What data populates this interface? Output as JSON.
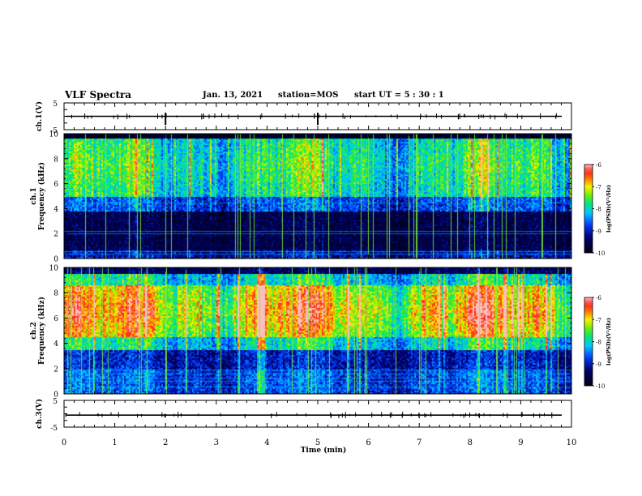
{
  "header": {
    "title": "VLF Spectra",
    "date": "Jan. 13, 2021",
    "station": "station=MOS",
    "start": "start  UT =   5 : 30 : 1"
  },
  "chart_data": [
    {
      "type": "line",
      "panel": "ch1-waveform",
      "ylabel": "ch.1(V)",
      "yticks": [
        "5",
        "-5"
      ],
      "ylim": [
        -5,
        5
      ],
      "x": [
        0,
        10
      ],
      "values": [
        0,
        0
      ]
    },
    {
      "type": "heatmap",
      "panel": "ch1-spectrogram",
      "ylabel": "Frequency (kHz)",
      "channel_label": "ch.1",
      "yticks": [
        "0",
        "2",
        "4",
        "6",
        "8",
        "10"
      ],
      "ylim": [
        0,
        10
      ],
      "xlim": [
        0,
        10
      ],
      "colorbar": {
        "label": "log(PSD)(V²/Hz)",
        "ticks": [
          "-6",
          "-7",
          "-8",
          "-9",
          "-10"
        ],
        "range": [
          -10,
          -6
        ]
      }
    },
    {
      "type": "heatmap",
      "panel": "ch2-spectrogram",
      "ylabel": "Frequency (kHz)",
      "channel_label": "ch.2",
      "yticks": [
        "0",
        "2",
        "4",
        "6",
        "8",
        "10"
      ],
      "ylim": [
        0,
        10
      ],
      "xlim": [
        0,
        10
      ],
      "colorbar": {
        "label": "log(PSD)(V²/Hz)",
        "ticks": [
          "-6",
          "-7",
          "-8",
          "-9",
          "-10"
        ],
        "range": [
          -10,
          -6
        ]
      }
    },
    {
      "type": "line",
      "panel": "ch3-waveform",
      "ylabel": "ch.3(V)",
      "yticks": [
        "5",
        "-5"
      ],
      "ylim": [
        -5,
        5
      ],
      "x": [
        0,
        10
      ],
      "values": [
        -0.5,
        -0.5
      ]
    }
  ],
  "xaxis": {
    "label": "Time (min)",
    "ticks": [
      "0",
      "1",
      "2",
      "3",
      "4",
      "5",
      "6",
      "7",
      "8",
      "9",
      "10"
    ],
    "xlim": [
      0,
      10
    ]
  },
  "colors": {
    "low": "#000033",
    "high": "#ff2020"
  }
}
